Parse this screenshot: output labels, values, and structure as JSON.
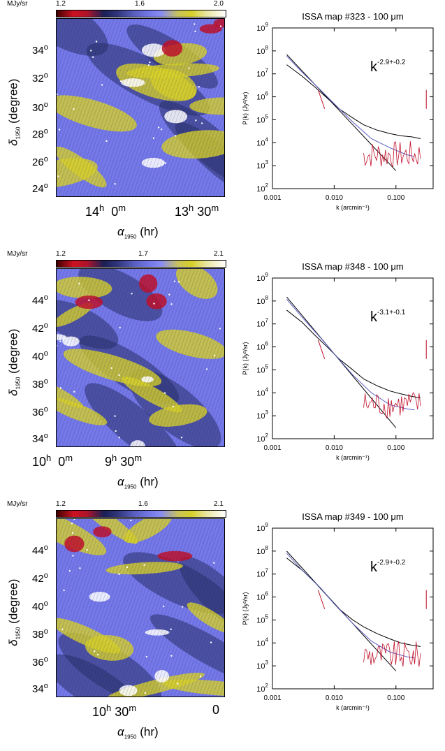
{
  "panels": [
    {
      "colorbar": {
        "unit": "MJy/sr",
        "ticks": [
          "1.2",
          "1.6",
          "2.0"
        ]
      },
      "map": {
        "dec_labels": [
          "34",
          "32",
          "30",
          "28",
          "26",
          "24"
        ],
        "dec_title": "δ1950 (degree)",
        "ra_labels": [
          {
            "h": "14",
            "hs": "h",
            "m": "0",
            "ms": "m"
          },
          {
            "h": "13",
            "hs": "h",
            "m": "30",
            "ms": "m"
          }
        ],
        "ra_title": "α1950 (hr)"
      },
      "spectrum": {
        "title": "ISSA map #323 - 100 μm",
        "slope": "k",
        "slope_exp": "-2.9+-0.2",
        "ylabel": "P(k) (Jy²/sr)",
        "xlabel": "k (arcmin⁻¹)"
      }
    },
    {
      "colorbar": {
        "unit": "MJy/sr",
        "ticks": [
          "1.2",
          "1.7",
          "2.1"
        ]
      },
      "map": {
        "dec_labels": [
          "44",
          "42",
          "40",
          "38",
          "36",
          "34"
        ],
        "dec_title": "δ1950 (degree)",
        "ra_labels": [
          {
            "h": "10",
            "hs": "h",
            "m": "0",
            "ms": "m"
          },
          {
            "h": "9",
            "hs": "h",
            "m": "30",
            "ms": "m"
          }
        ],
        "ra_title": "α1950 (hr)"
      },
      "spectrum": {
        "title": "ISSA map #348 - 100 μm",
        "slope": "k",
        "slope_exp": "-3.1+-0.1",
        "ylabel": "P(k) (Jy²/sr)",
        "xlabel": "k (arcmin⁻¹)"
      }
    },
    {
      "colorbar": {
        "unit": "MJy/sr",
        "ticks": [
          "1.2",
          "1.6",
          "2.1"
        ]
      },
      "map": {
        "dec_labels": [
          "44",
          "42",
          "40",
          "38",
          "36",
          "34"
        ],
        "dec_title": "δ1950 (degree)",
        "ra_labels": [
          {
            "h": "10",
            "hs": "h",
            "m": "30",
            "ms": "m"
          },
          {
            "h": "0",
            "hs": "",
            "m": "",
            "ms": ""
          }
        ],
        "ra_title": "α1950 (hr)"
      },
      "spectrum": {
        "title": "ISSA map #349 - 100 μm",
        "slope": "k",
        "slope_exp": "-2.9+-0.2",
        "ylabel": "P(k) (Jy²/sr)",
        "xlabel": "k (arcmin⁻¹)"
      }
    }
  ],
  "axes": {
    "y_ticks": [
      "10",
      "10",
      "10",
      "10",
      "10",
      "10",
      "10",
      "10"
    ],
    "y_tick_exps": [
      "9",
      "8",
      "7",
      "6",
      "5",
      "4",
      "3",
      "2"
    ],
    "x_ticks": [
      "0.001",
      "0.010",
      "0.100"
    ]
  },
  "colors": {
    "map_blue": "#7478e8",
    "map_dark": "#2a2f6a",
    "map_yellow": "#d6d02a",
    "map_red": "#c0102a",
    "data_black": "#000000",
    "data_blue": "#5a5fc0",
    "data_red": "#c0102a"
  },
  "chart_data": [
    {
      "type": "line",
      "title": "ISSA map #323 - 100 μm",
      "xlabel": "k (arcmin⁻¹)",
      "ylabel": "P(k) (Jy²/sr)",
      "xscale": "log",
      "yscale": "log",
      "xlim": [
        0.001,
        0.4
      ],
      "ylim": [
        100,
        1000000000
      ],
      "series": [
        {
          "name": "",
          "x": [
            0.0017,
            0.003,
            0.005,
            0.008,
            0.012,
            0.02,
            0.03,
            0.05,
            0.08,
            0.12,
            0.18,
            0.25
          ],
          "y": [
            25000000,
            8000000,
            2500000,
            800000,
            300000,
            120000,
            60000,
            35000,
            25000,
            20000,
            18000,
            15000
          ]
        },
        {
          "name": "",
          "x": [
            0.0017,
            0.1
          ],
          "y": [
            70000000,
            600
          ]
        },
        {
          "name": "",
          "x": [
            0.0017,
            0.003,
            0.006,
            0.01,
            0.02,
            0.04,
            0.08,
            0.15,
            0.2
          ],
          "y": [
            60000000,
            12000000,
            2000000,
            500000,
            80000,
            15000,
            6000,
            3000,
            2500
          ]
        }
      ]
    },
    {
      "type": "line",
      "title": "ISSA map #348 - 100 μm",
      "xlabel": "k (arcmin⁻¹)",
      "ylabel": "P(k) (Jy²/sr)",
      "xscale": "log",
      "yscale": "log",
      "xlim": [
        0.001,
        0.4
      ],
      "ylim": [
        100,
        1000000000
      ],
      "series": [
        {
          "name": "",
          "x": [
            0.0017,
            0.003,
            0.005,
            0.008,
            0.012,
            0.02,
            0.03,
            0.05,
            0.08,
            0.12,
            0.18,
            0.25
          ],
          "y": [
            40000000,
            12000000,
            3000000,
            900000,
            300000,
            100000,
            40000,
            20000,
            12000,
            9000,
            7000,
            6000
          ]
        },
        {
          "name": "",
          "x": [
            0.0017,
            0.1
          ],
          "y": [
            150000000,
            300
          ]
        },
        {
          "name": "",
          "x": [
            0.0017,
            0.003,
            0.006,
            0.01,
            0.02,
            0.04,
            0.08,
            0.15,
            0.2
          ],
          "y": [
            120000000,
            20000000,
            2500000,
            500000,
            60000,
            10000,
            3000,
            2000,
            1800
          ]
        }
      ]
    },
    {
      "type": "line",
      "title": "ISSA map #349 - 100 μm",
      "xlabel": "k (arcmin⁻¹)",
      "ylabel": "P(k) (Jy²/sr)",
      "xscale": "log",
      "yscale": "log",
      "xlim": [
        0.001,
        0.4
      ],
      "ylim": [
        100,
        1000000000
      ],
      "series": [
        {
          "name": "",
          "x": [
            0.0017,
            0.003,
            0.005,
            0.008,
            0.012,
            0.02,
            0.03,
            0.05,
            0.08,
            0.12,
            0.18,
            0.25
          ],
          "y": [
            50000000,
            15000000,
            4000000,
            1000000,
            300000,
            100000,
            50000,
            25000,
            15000,
            10000,
            8000,
            7000
          ]
        },
        {
          "name": "",
          "x": [
            0.0017,
            0.1
          ],
          "y": [
            100000000,
            600
          ]
        },
        {
          "name": "",
          "x": [
            0.0017,
            0.003,
            0.006,
            0.01,
            0.02,
            0.04,
            0.08,
            0.15,
            0.2
          ],
          "y": [
            80000000,
            15000000,
            2500000,
            500000,
            70000,
            12000,
            4000,
            2500,
            2200
          ]
        }
      ]
    }
  ]
}
